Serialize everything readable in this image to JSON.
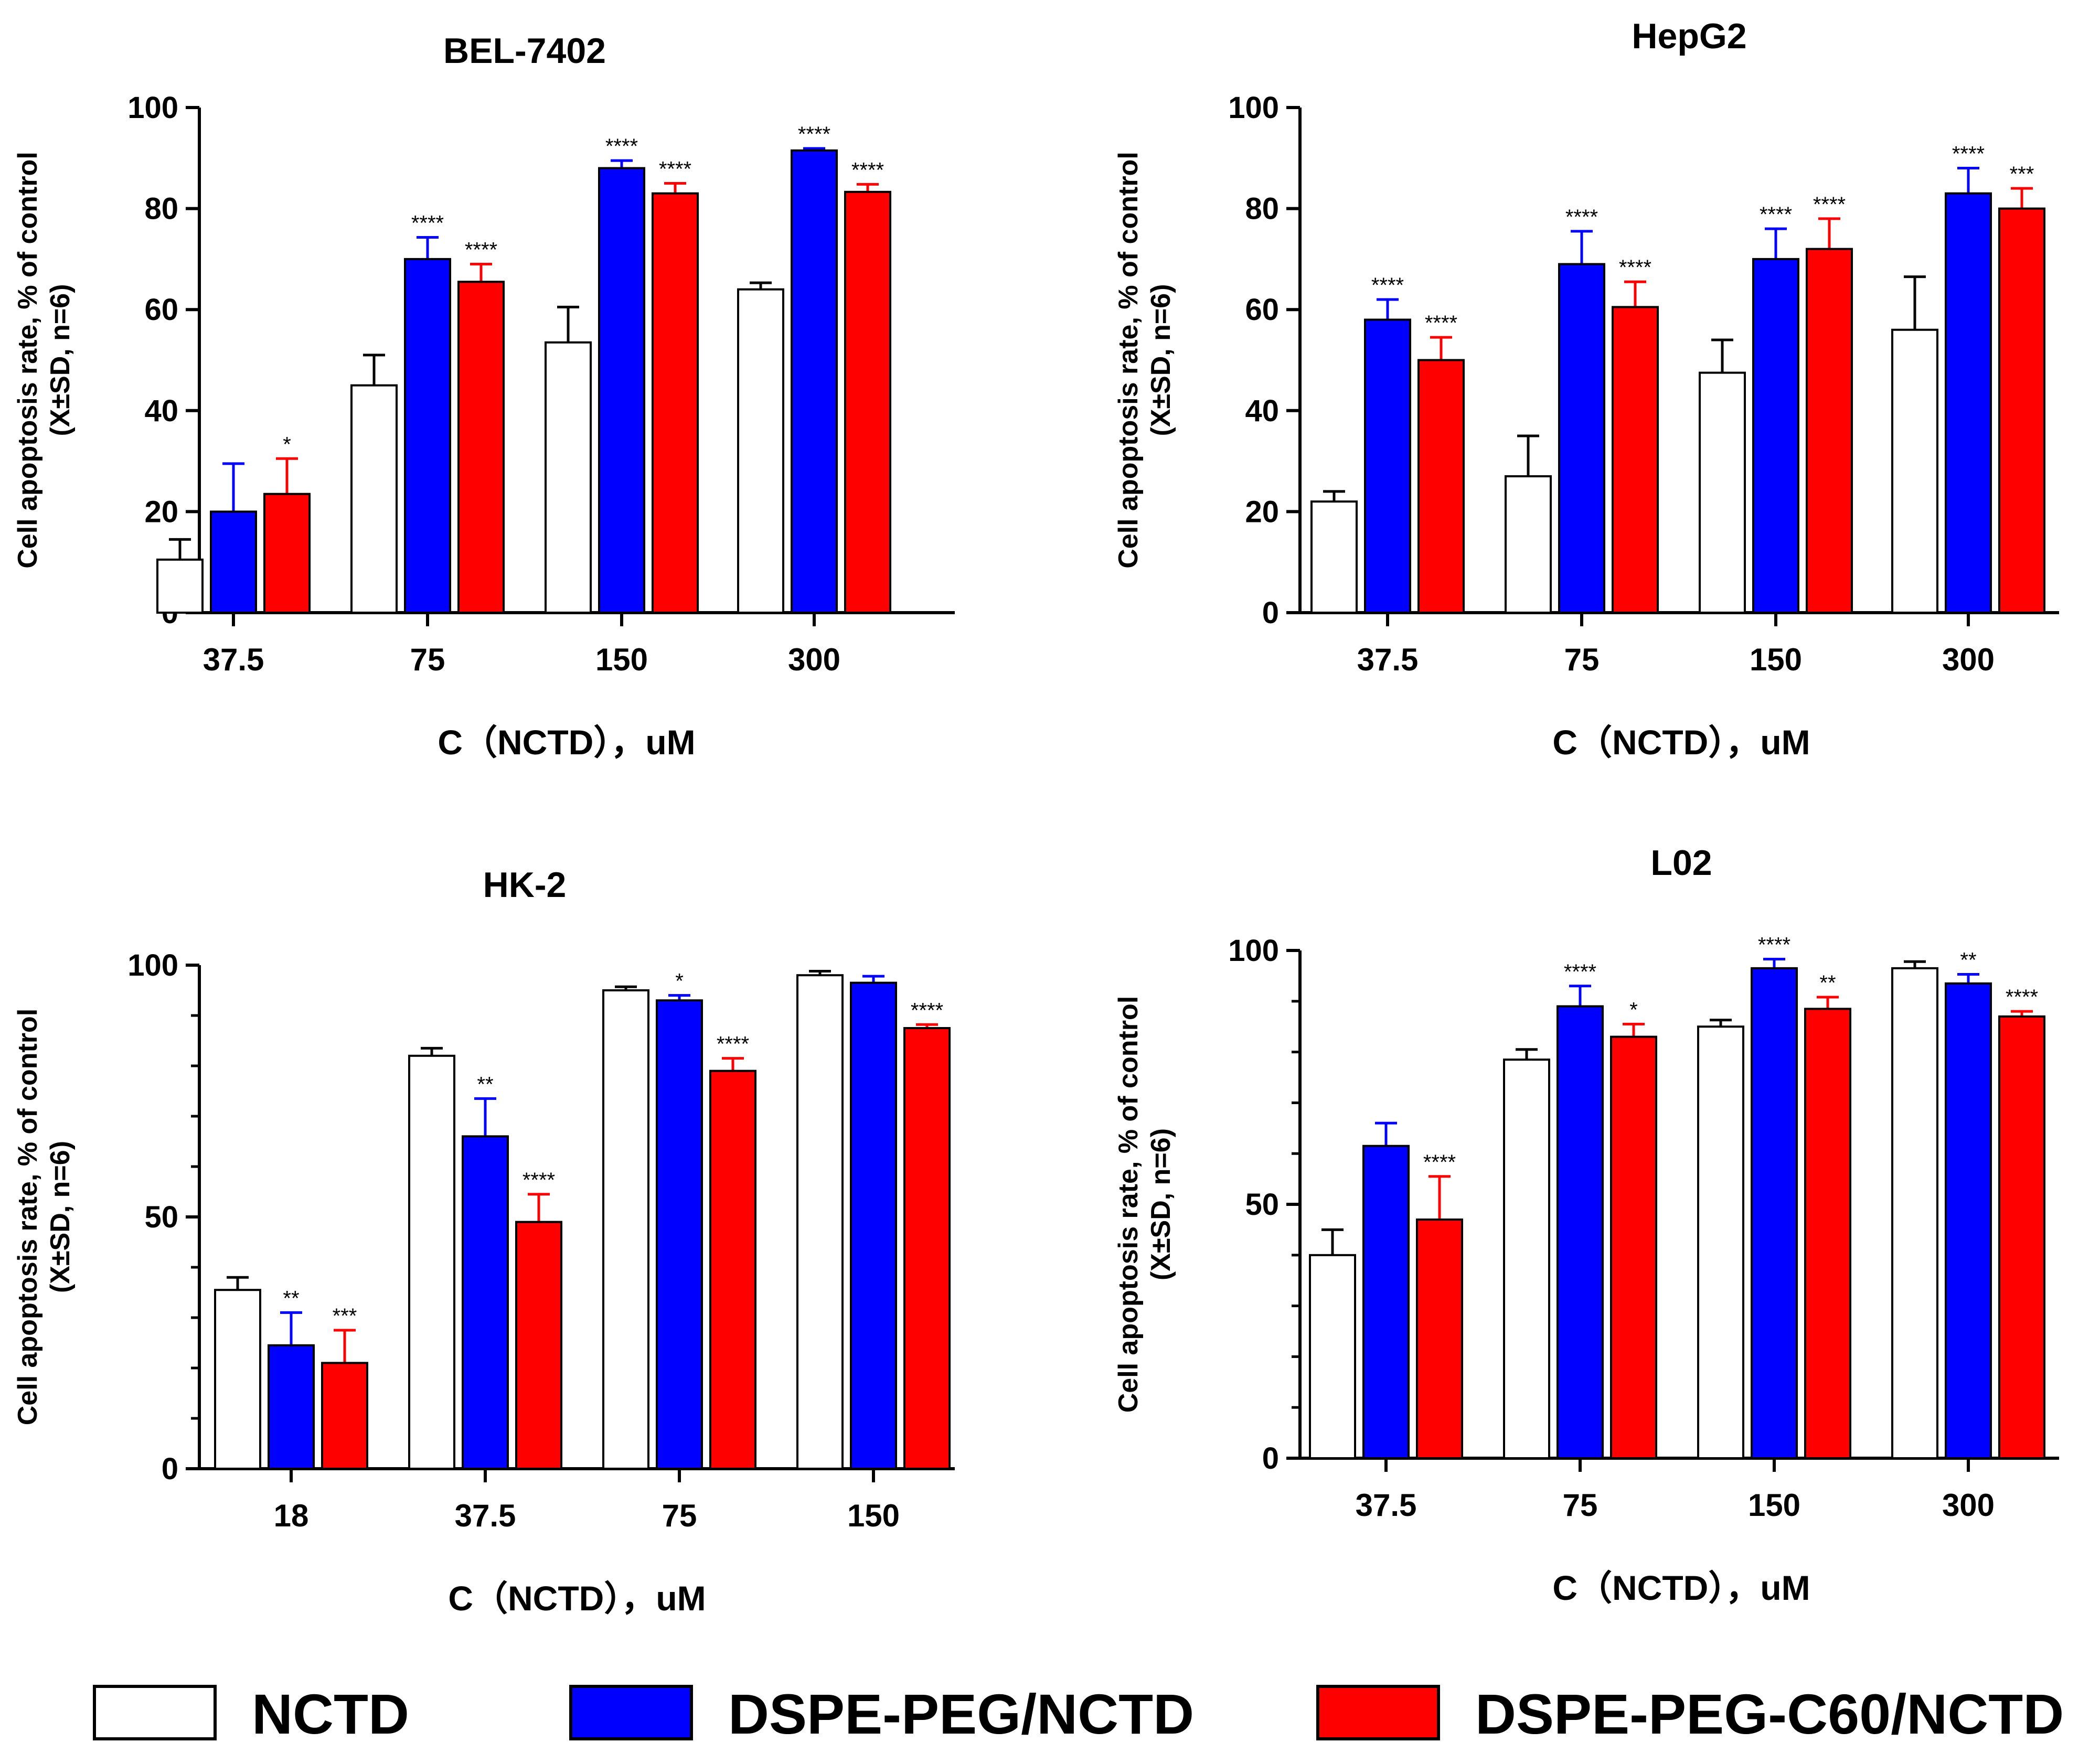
{
  "colors": {
    "NCTD": "#ffffff",
    "DSPE-PEG/NCTD": "#0000ff",
    "DSPE-PEG-C60/NCTD": "#ff0000",
    "axis": "#000000"
  },
  "legend": {
    "items": [
      {
        "label": "NCTD",
        "color": "#ffffff"
      },
      {
        "label": "DSPE-PEG/NCTD",
        "color": "#0000ff"
      },
      {
        "label": "DSPE-PEG-C60/NCTD",
        "color": "#ff0000"
      }
    ]
  },
  "chart_data": [
    {
      "type": "bar",
      "title": "BEL-7402",
      "xlabel": "C（NCTD），uM",
      "ylabel_line1": "Cell apoptosis rate, % of control",
      "ylabel_line2": "(X±SD, n=6)",
      "ylim": [
        0,
        100
      ],
      "yticks": [
        0,
        20,
        40,
        60,
        80,
        100
      ],
      "categories": [
        "37.5",
        "75",
        "150",
        "300"
      ],
      "series": [
        {
          "name": "NCTD",
          "values": [
            10.5,
            45,
            53.5,
            64
          ],
          "errors": [
            4,
            6,
            7,
            1.3
          ],
          "sig": [
            "",
            "",
            "",
            ""
          ]
        },
        {
          "name": "DSPE-PEG/NCTD",
          "values": [
            20,
            70,
            88,
            91.5
          ],
          "errors": [
            9.5,
            4.3,
            1.5,
            0.4
          ],
          "sig": [
            "",
            "****",
            "****",
            "****"
          ]
        },
        {
          "name": "DSPE-PEG-C60/NCTD",
          "values": [
            23.5,
            65.5,
            83,
            83.3
          ],
          "errors": [
            7,
            3.5,
            2,
            1.5
          ],
          "sig": [
            "*",
            "****",
            "****",
            "****"
          ]
        }
      ]
    },
    {
      "type": "bar",
      "title": "HepG2",
      "xlabel": "C（NCTD），uM",
      "ylabel_line1": "Cell apoptosis rate, % of control",
      "ylabel_line2": "(X±SD, n=6)",
      "ylim": [
        0,
        100
      ],
      "yticks": [
        0,
        20,
        40,
        60,
        80,
        100
      ],
      "categories": [
        "37.5",
        "75",
        "150",
        "300"
      ],
      "series": [
        {
          "name": "NCTD",
          "values": [
            22,
            27,
            47.5,
            56
          ],
          "errors": [
            2,
            8,
            6.5,
            10.5
          ],
          "sig": [
            "",
            "",
            "",
            ""
          ]
        },
        {
          "name": "DSPE-PEG/NCTD",
          "values": [
            58,
            69,
            70,
            83
          ],
          "errors": [
            4,
            6.5,
            6,
            5
          ],
          "sig": [
            "****",
            "****",
            "****",
            "****"
          ]
        },
        {
          "name": "DSPE-PEG-C60/NCTD",
          "values": [
            50,
            60.5,
            72,
            80
          ],
          "errors": [
            4.5,
            5,
            6,
            4
          ],
          "sig": [
            "****",
            "****",
            "****",
            "***"
          ]
        }
      ]
    },
    {
      "type": "bar",
      "title": "HK-2",
      "xlabel": "C（NCTD），uM",
      "ylabel_line1": "Cell apoptosis rate, % of control",
      "ylabel_line2": "(X±SD, n=6)",
      "ylim": [
        0,
        100
      ],
      "yticks": [
        0,
        50,
        100
      ],
      "minor_step": 10,
      "categories": [
        "18",
        "37.5",
        "75",
        "150"
      ],
      "series": [
        {
          "name": "NCTD",
          "values": [
            35.5,
            82,
            95,
            98
          ],
          "errors": [
            2.5,
            1.5,
            0.7,
            0.8
          ],
          "sig": [
            "",
            "",
            "",
            ""
          ]
        },
        {
          "name": "DSPE-PEG/NCTD",
          "values": [
            24.5,
            66,
            93,
            96.5
          ],
          "errors": [
            6.5,
            7.5,
            1,
            1.3
          ],
          "sig": [
            "**",
            "**",
            "*",
            ""
          ]
        },
        {
          "name": "DSPE-PEG-C60/NCTD",
          "values": [
            21,
            49,
            79,
            87.5
          ],
          "errors": [
            6.5,
            5.5,
            2.5,
            0.7
          ],
          "sig": [
            "***",
            "****",
            "****",
            "****"
          ]
        }
      ]
    },
    {
      "type": "bar",
      "title": "L02",
      "xlabel": "C（NCTD），uM",
      "ylabel_line1": "Cell apoptosis rate, % of control",
      "ylabel_line2": "(X±SD, n=6)",
      "ylim": [
        0,
        100
      ],
      "yticks": [
        0,
        50,
        100
      ],
      "minor_step": 10,
      "categories": [
        "37.5",
        "75",
        "150",
        "300"
      ],
      "series": [
        {
          "name": "NCTD",
          "values": [
            40,
            78.5,
            85,
            96.5
          ],
          "errors": [
            5,
            2,
            1.3,
            1.3
          ],
          "sig": [
            "",
            "",
            "",
            ""
          ]
        },
        {
          "name": "DSPE-PEG/NCTD",
          "values": [
            61.5,
            89,
            96.5,
            93.5
          ],
          "errors": [
            4.5,
            4,
            1.8,
            1.8
          ],
          "sig": [
            "",
            "****",
            "****",
            "**"
          ]
        },
        {
          "name": "DSPE-PEG-C60/NCTD",
          "values": [
            47,
            83,
            88.5,
            87
          ],
          "errors": [
            8.5,
            2.5,
            2.3,
            1
          ],
          "sig": [
            "****",
            "*",
            "**",
            "****"
          ]
        }
      ]
    }
  ]
}
